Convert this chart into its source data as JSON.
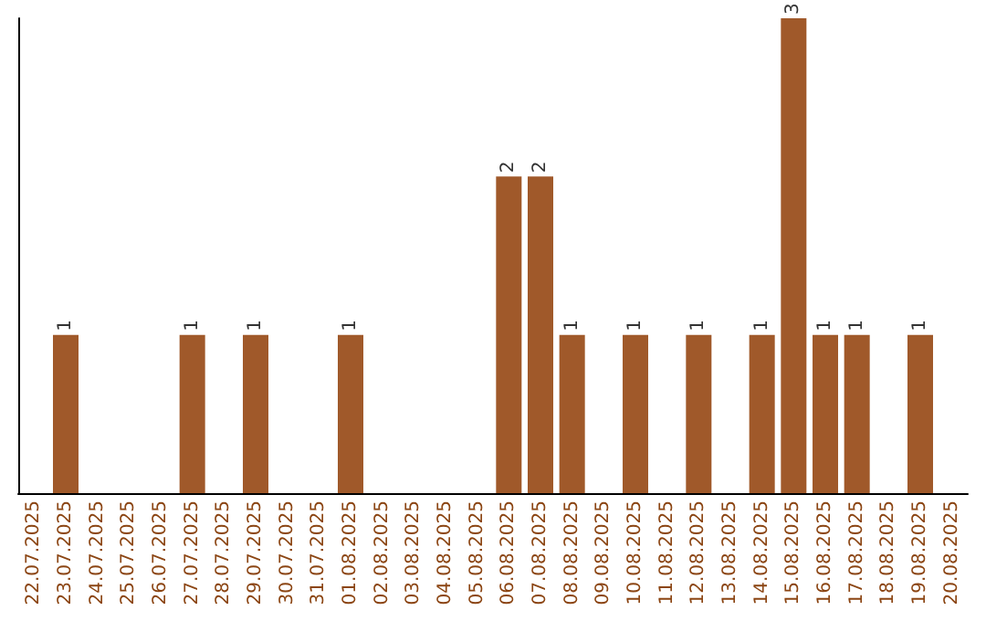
{
  "chart_data": {
    "type": "bar",
    "categories": [
      "22.07.2025",
      "23.07.2025",
      "24.07.2025",
      "25.07.2025",
      "26.07.2025",
      "27.07.2025",
      "28.07.2025",
      "29.07.2025",
      "30.07.2025",
      "31.07.2025",
      "01.08.2025",
      "02.08.2025",
      "03.08.2025",
      "04.08.2025",
      "05.08.2025",
      "06.08.2025",
      "07.08.2025",
      "08.08.2025",
      "09.08.2025",
      "10.08.2025",
      "11.08.2025",
      "12.08.2025",
      "13.08.2025",
      "14.08.2025",
      "15.08.2025",
      "16.08.2025",
      "17.08.2025",
      "18.08.2025",
      "19.08.2025",
      "20.08.2025"
    ],
    "values": [
      0,
      1,
      0,
      0,
      0,
      1,
      0,
      1,
      0,
      0,
      1,
      0,
      0,
      0,
      0,
      2,
      2,
      1,
      0,
      1,
      0,
      1,
      0,
      1,
      3,
      1,
      1,
      0,
      1,
      0
    ],
    "value_labels": [
      null,
      "1",
      null,
      null,
      null,
      "1",
      null,
      "1",
      null,
      null,
      "1",
      null,
      null,
      null,
      null,
      "2",
      "2",
      "1",
      null,
      "1",
      null,
      "1",
      null,
      "1",
      "3",
      "1",
      "1",
      null,
      "1",
      null
    ],
    "color": "#a0592a",
    "tick_labels": "x"
  }
}
